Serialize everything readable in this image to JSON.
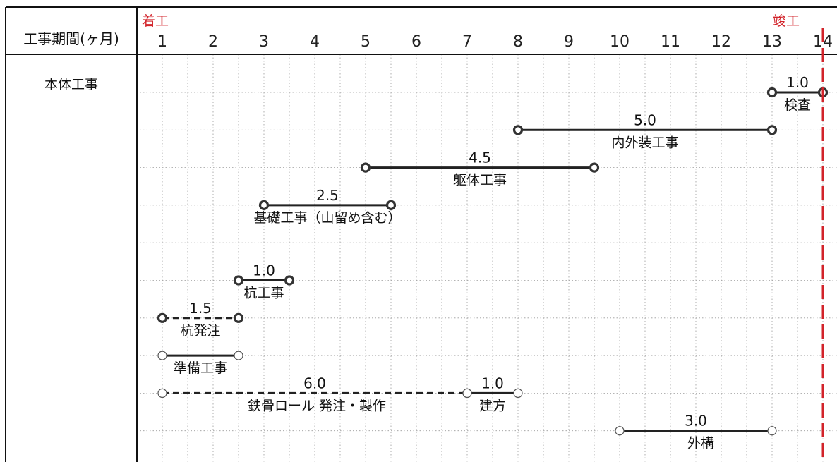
{
  "header": {
    "row_label": "工事期間(ヶ月)",
    "start_label": "着工",
    "end_label": "竣工"
  },
  "category": "本体工事",
  "colors": {
    "completion_line": "#d2232a",
    "bar": "#222222",
    "grid": "#9a9a9a"
  },
  "chart_data": {
    "type": "gantt",
    "months": [
      "1",
      "2",
      "3",
      "4",
      "5",
      "6",
      "7",
      "8",
      "9",
      "10",
      "11",
      "12",
      "13",
      "14"
    ],
    "completion_month": 13.5,
    "tasks": [
      {
        "name": "検査",
        "duration": "1.0",
        "start": 12.5,
        "end": 13.5,
        "row": 0,
        "style": "solid",
        "endpoints": "bold"
      },
      {
        "name": "内外装工事",
        "duration": "5.0",
        "start": 7.5,
        "end": 12.5,
        "row": 1,
        "style": "solid",
        "endpoints": "bold"
      },
      {
        "name": "躯体工事",
        "duration": "4.5",
        "start": 4.5,
        "end": 9.0,
        "row": 2,
        "style": "solid",
        "endpoints": "bold"
      },
      {
        "name": "基礎工事（山留め含む）",
        "duration": "2.5",
        "start": 2.5,
        "end": 5.0,
        "row": 3,
        "style": "solid",
        "endpoints": "bold"
      },
      {
        "name": "杭工事",
        "duration": "1.0",
        "start": 2.0,
        "end": 3.0,
        "row": 5,
        "style": "solid",
        "endpoints": "bold"
      },
      {
        "name": "杭発注",
        "duration": "1.5",
        "start": 0.5,
        "end": 2.0,
        "row": 6,
        "style": "dashed",
        "endpoints": "bold"
      },
      {
        "name": "準備工事",
        "duration": "",
        "start": 0.5,
        "end": 2.0,
        "row": 7,
        "style": "solid",
        "endpoints": "thin"
      },
      {
        "name": "鉄骨ロール 発注・製作",
        "duration": "6.0",
        "start": 0.5,
        "end": 6.5,
        "row": 8,
        "style": "dashed",
        "endpoints": "thin"
      },
      {
        "name": "建方",
        "duration": "1.0",
        "start": 6.5,
        "end": 7.5,
        "row": 8,
        "style": "solid",
        "endpoints": "thin"
      },
      {
        "name": "外構",
        "duration": "3.0",
        "start": 9.5,
        "end": 12.5,
        "row": 9,
        "style": "solid",
        "endpoints": "thin"
      }
    ]
  }
}
